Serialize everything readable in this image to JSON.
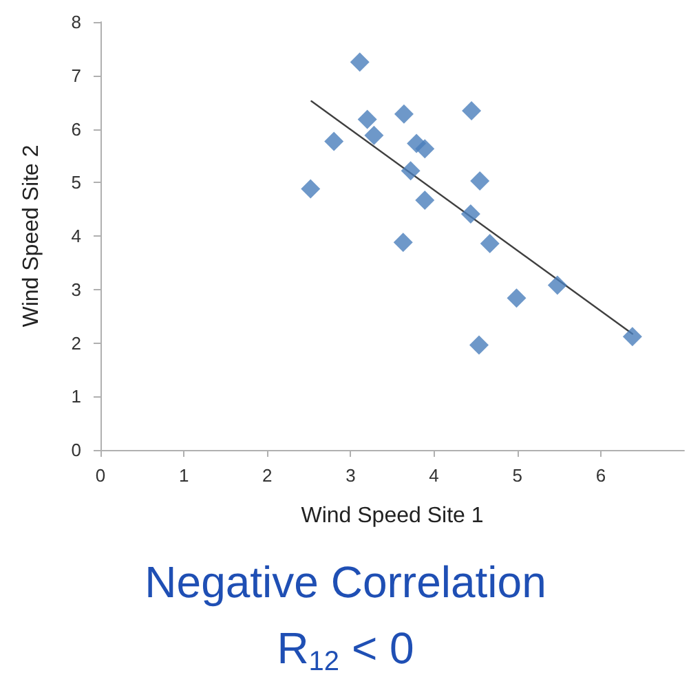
{
  "chart_data": {
    "type": "scatter",
    "title": "Negative Correlation",
    "subtitle": "R$_{12}$ < 0",
    "xlabel": "Wind Speed Site 1",
    "ylabel": "Wind Speed Site 2",
    "marker": "diamond",
    "grid": false,
    "xlim": [
      0,
      7
    ],
    "xticks": [
      0,
      1,
      2,
      3,
      4,
      5,
      6
    ],
    "ylim": [
      0,
      8
    ],
    "yticks": [
      0,
      1,
      2,
      3,
      4,
      5,
      6,
      7,
      8
    ],
    "series": [
      {
        "color": "#4a7ebb",
        "x": [
          3.11,
          3.2,
          3.64,
          4.45,
          2.8,
          3.28,
          3.79,
          3.89,
          3.72,
          4.55,
          2.52,
          3.89,
          4.44,
          3.63,
          4.67,
          4.99,
          5.48,
          4.54,
          6.38
        ],
        "values": [
          7.25,
          6.18,
          6.28,
          6.34,
          5.77,
          5.88,
          5.73,
          5.63,
          5.22,
          5.03,
          4.88,
          4.67,
          4.41,
          3.88,
          3.86,
          2.84,
          3.08,
          1.96,
          2.12
        ]
      },
      {
        "type": "line",
        "color": "#404040",
        "marker": "none",
        "x": [
          2.53,
          6.38
        ],
        "values": [
          6.52,
          2.17
        ]
      }
    ]
  }
}
